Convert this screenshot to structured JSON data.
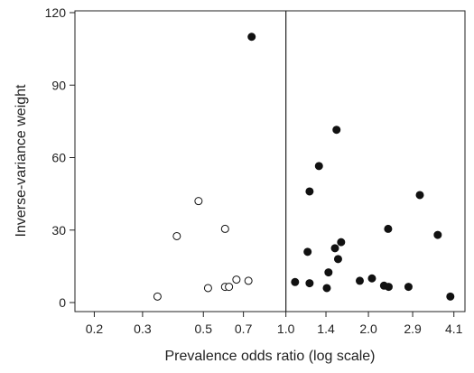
{
  "chart_data": {
    "type": "scatter",
    "title": "",
    "xlabel": "Prevalence odds ratio (log scale)",
    "ylabel": "Inverse-variance weight",
    "x_scale": "log",
    "xlim": [
      0.17,
      4.5
    ],
    "ylim": [
      0,
      120
    ],
    "x_ticks": [
      0.2,
      0.3,
      0.5,
      0.7,
      1.0,
      1.4,
      2.0,
      2.9,
      4.1
    ],
    "x_tick_labels": [
      "0.2",
      "0.3",
      "0.5",
      "0.7",
      "1.0",
      "1.4",
      "2.0",
      "2.9",
      "4.1"
    ],
    "y_ticks": [
      0,
      30,
      60,
      90,
      120
    ],
    "y_tick_labels": [
      "0",
      "30",
      "60",
      "90",
      "120"
    ],
    "reference_line_x": 1.0,
    "grid": false,
    "series": [
      {
        "marker": "open-circle",
        "points": [
          {
            "x": 0.34,
            "y": 2.5
          },
          {
            "x": 0.4,
            "y": 27.5
          },
          {
            "x": 0.48,
            "y": 42
          },
          {
            "x": 0.52,
            "y": 6
          },
          {
            "x": 0.6,
            "y": 30.5
          },
          {
            "x": 0.6,
            "y": 6.5
          },
          {
            "x": 0.62,
            "y": 6.5
          },
          {
            "x": 0.66,
            "y": 9.5
          },
          {
            "x": 0.73,
            "y": 9
          }
        ]
      },
      {
        "marker": "filled-circle",
        "points": [
          {
            "x": 0.75,
            "y": 110
          },
          {
            "x": 1.08,
            "y": 8.5
          },
          {
            "x": 1.2,
            "y": 21
          },
          {
            "x": 1.22,
            "y": 46
          },
          {
            "x": 1.22,
            "y": 8
          },
          {
            "x": 1.32,
            "y": 56.5
          },
          {
            "x": 1.41,
            "y": 6
          },
          {
            "x": 1.43,
            "y": 12.5
          },
          {
            "x": 1.51,
            "y": 22.5
          },
          {
            "x": 1.53,
            "y": 71.5
          },
          {
            "x": 1.55,
            "y": 18
          },
          {
            "x": 1.59,
            "y": 25
          },
          {
            "x": 1.86,
            "y": 9
          },
          {
            "x": 2.06,
            "y": 10
          },
          {
            "x": 2.28,
            "y": 7
          },
          {
            "x": 2.36,
            "y": 30.5
          },
          {
            "x": 2.37,
            "y": 6.5
          },
          {
            "x": 2.8,
            "y": 6.5
          },
          {
            "x": 3.08,
            "y": 44.5
          },
          {
            "x": 3.58,
            "y": 28
          },
          {
            "x": 3.98,
            "y": 2.5
          }
        ]
      }
    ]
  }
}
